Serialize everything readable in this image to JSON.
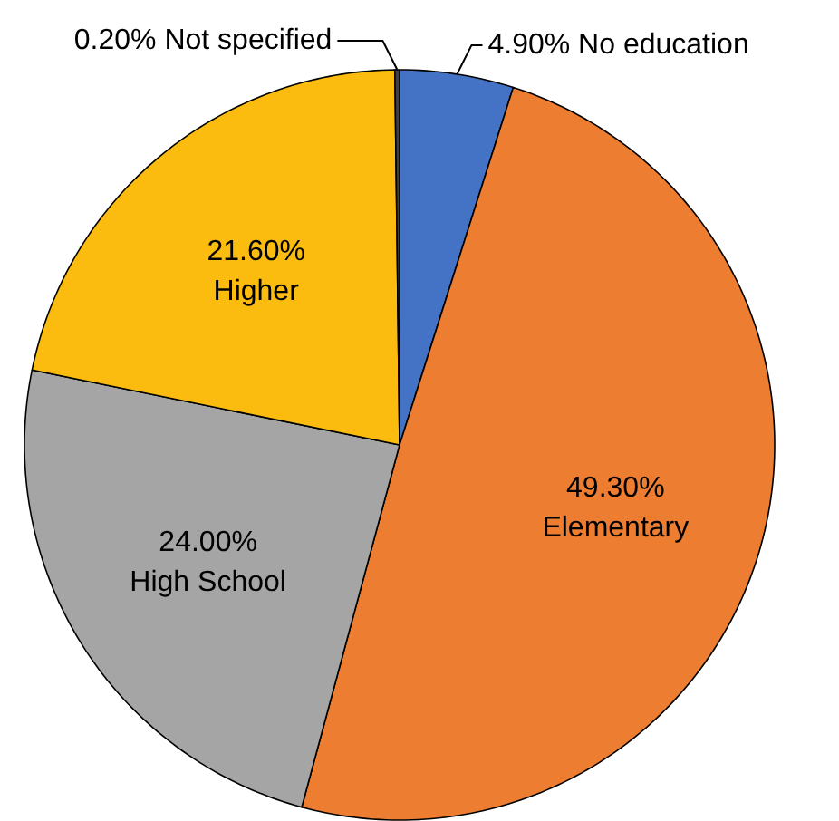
{
  "chart_data": {
    "type": "pie",
    "categories": [
      "No education",
      "Elementary",
      "High School",
      "Higher",
      "Not specified"
    ],
    "values": [
      4.9,
      49.3,
      24.0,
      21.6,
      0.2
    ],
    "value_labels": [
      "4.90%",
      "49.30%",
      "24.00%",
      "21.60%",
      "0.20%"
    ],
    "colors": [
      "#4472c4",
      "#ed7d31",
      "#a5a5a5",
      "#fbbc0f",
      "#404040"
    ]
  }
}
